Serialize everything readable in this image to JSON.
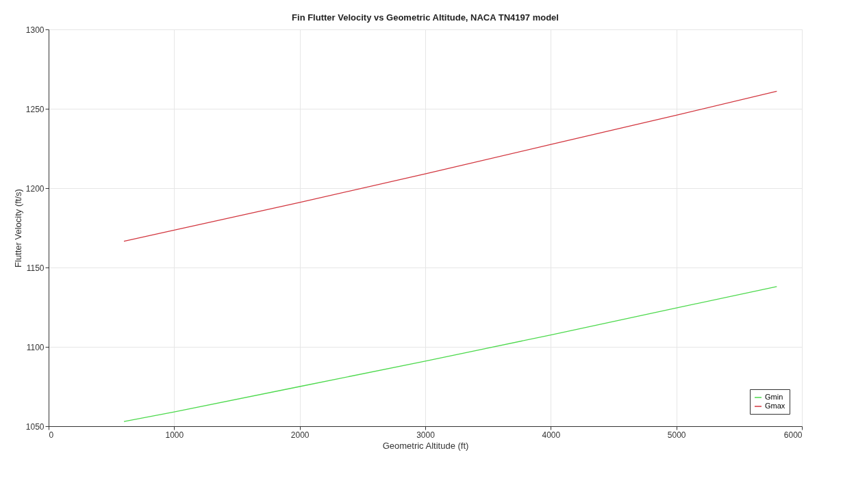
{
  "chart_data": {
    "type": "line",
    "title": "Fin Flutter Velocity vs Geometric Altitude, NACA TN4197 model",
    "xlabel": "Geometric Altitude (ft)",
    "ylabel": "Flutter Velocity (ft/s)",
    "x": [
      600,
      1000,
      2000,
      3000,
      4000,
      5000,
      5800
    ],
    "series": [
      {
        "name": "Gmin",
        "color": "#4cd94c",
        "values": [
          1053,
          1059,
          1075,
          1091,
          1107.5,
          1124.5,
          1138
        ]
      },
      {
        "name": "Gmax",
        "color": "#d2363f",
        "values": [
          1166.5,
          1173.5,
          1191,
          1209,
          1227.5,
          1246,
          1261
        ]
      }
    ],
    "xlim": [
      0,
      6000
    ],
    "xticks": [
      0,
      1000,
      2000,
      3000,
      4000,
      5000,
      6000
    ],
    "ylim": [
      1050,
      1300
    ],
    "yticks": [
      1050,
      1100,
      1150,
      1200,
      1250,
      1300
    ],
    "grid": true,
    "legend": "bottom right",
    "marker": "none",
    "line_style": "solid"
  }
}
